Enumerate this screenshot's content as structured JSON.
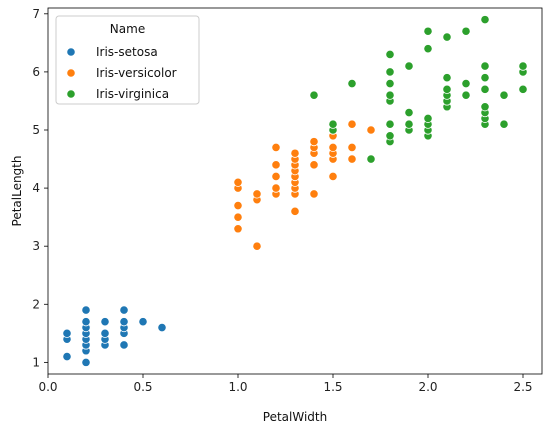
{
  "chart_data": {
    "type": "scatter",
    "xlabel": "PetalWidth",
    "ylabel": "PetalLength",
    "xlim": [
      0.0,
      2.6
    ],
    "ylim": [
      0.8,
      7.1
    ],
    "xticks": [
      "0.0",
      "0.5",
      "1.0",
      "1.5",
      "2.0",
      "2.5"
    ],
    "xtick_values": [
      0.0,
      0.5,
      1.0,
      1.5,
      2.0,
      2.5
    ],
    "yticks": [
      "1",
      "2",
      "3",
      "4",
      "5",
      "6",
      "7"
    ],
    "ytick_values": [
      1,
      2,
      3,
      4,
      5,
      6,
      7
    ],
    "grid": false,
    "legend": {
      "title": "Name",
      "placement": "top-left"
    },
    "series": [
      {
        "name": "Iris-setosa",
        "color": "#1f77b4",
        "points": [
          [
            0.1,
            1.1
          ],
          [
            0.1,
            1.4
          ],
          [
            0.1,
            1.5
          ],
          [
            0.2,
            1.0
          ],
          [
            0.2,
            1.2
          ],
          [
            0.2,
            1.3
          ],
          [
            0.2,
            1.4
          ],
          [
            0.2,
            1.5
          ],
          [
            0.2,
            1.6
          ],
          [
            0.2,
            1.7
          ],
          [
            0.2,
            1.9
          ],
          [
            0.3,
            1.3
          ],
          [
            0.3,
            1.4
          ],
          [
            0.3,
            1.5
          ],
          [
            0.3,
            1.7
          ],
          [
            0.4,
            1.3
          ],
          [
            0.4,
            1.5
          ],
          [
            0.4,
            1.6
          ],
          [
            0.4,
            1.7
          ],
          [
            0.4,
            1.9
          ],
          [
            0.5,
            1.7
          ],
          [
            0.6,
            1.6
          ]
        ]
      },
      {
        "name": "Iris-versicolor",
        "color": "#ff7f0e",
        "points": [
          [
            1.0,
            3.3
          ],
          [
            1.0,
            3.5
          ],
          [
            1.0,
            3.7
          ],
          [
            1.0,
            4.0
          ],
          [
            1.0,
            4.1
          ],
          [
            1.1,
            3.0
          ],
          [
            1.1,
            3.8
          ],
          [
            1.1,
            3.9
          ],
          [
            1.2,
            3.9
          ],
          [
            1.2,
            4.0
          ],
          [
            1.2,
            4.2
          ],
          [
            1.2,
            4.4
          ],
          [
            1.2,
            4.7
          ],
          [
            1.3,
            3.6
          ],
          [
            1.3,
            3.9
          ],
          [
            1.3,
            4.0
          ],
          [
            1.3,
            4.1
          ],
          [
            1.3,
            4.2
          ],
          [
            1.3,
            4.3
          ],
          [
            1.3,
            4.4
          ],
          [
            1.3,
            4.5
          ],
          [
            1.3,
            4.6
          ],
          [
            1.4,
            3.9
          ],
          [
            1.4,
            4.4
          ],
          [
            1.4,
            4.6
          ],
          [
            1.4,
            4.7
          ],
          [
            1.4,
            4.8
          ],
          [
            1.5,
            4.2
          ],
          [
            1.5,
            4.5
          ],
          [
            1.5,
            4.6
          ],
          [
            1.5,
            4.7
          ],
          [
            1.5,
            4.9
          ],
          [
            1.5,
            5.0
          ],
          [
            1.6,
            4.5
          ],
          [
            1.6,
            4.7
          ],
          [
            1.6,
            5.1
          ],
          [
            1.7,
            5.0
          ]
        ]
      },
      {
        "name": "Iris-virginica",
        "color": "#2ca02c",
        "points": [
          [
            1.4,
            5.6
          ],
          [
            1.5,
            5.0
          ],
          [
            1.5,
            5.1
          ],
          [
            1.6,
            5.8
          ],
          [
            1.7,
            4.5
          ],
          [
            1.8,
            4.8
          ],
          [
            1.8,
            4.9
          ],
          [
            1.8,
            5.1
          ],
          [
            1.8,
            5.5
          ],
          [
            1.8,
            5.6
          ],
          [
            1.8,
            5.8
          ],
          [
            1.8,
            6.0
          ],
          [
            1.8,
            6.3
          ],
          [
            1.9,
            5.0
          ],
          [
            1.9,
            5.1
          ],
          [
            1.9,
            5.3
          ],
          [
            1.9,
            6.1
          ],
          [
            2.0,
            4.9
          ],
          [
            2.0,
            5.0
          ],
          [
            2.0,
            5.1
          ],
          [
            2.0,
            5.2
          ],
          [
            2.0,
            6.4
          ],
          [
            2.0,
            6.7
          ],
          [
            2.1,
            5.4
          ],
          [
            2.1,
            5.5
          ],
          [
            2.1,
            5.6
          ],
          [
            2.1,
            5.7
          ],
          [
            2.1,
            5.9
          ],
          [
            2.1,
            6.6
          ],
          [
            2.2,
            5.6
          ],
          [
            2.2,
            5.8
          ],
          [
            2.2,
            6.7
          ],
          [
            2.3,
            5.1
          ],
          [
            2.3,
            5.2
          ],
          [
            2.3,
            5.3
          ],
          [
            2.3,
            5.4
          ],
          [
            2.3,
            5.7
          ],
          [
            2.3,
            5.9
          ],
          [
            2.3,
            6.1
          ],
          [
            2.3,
            6.9
          ],
          [
            2.4,
            5.1
          ],
          [
            2.4,
            5.6
          ],
          [
            2.5,
            5.7
          ],
          [
            2.5,
            6.0
          ],
          [
            2.5,
            6.1
          ]
        ]
      }
    ]
  }
}
